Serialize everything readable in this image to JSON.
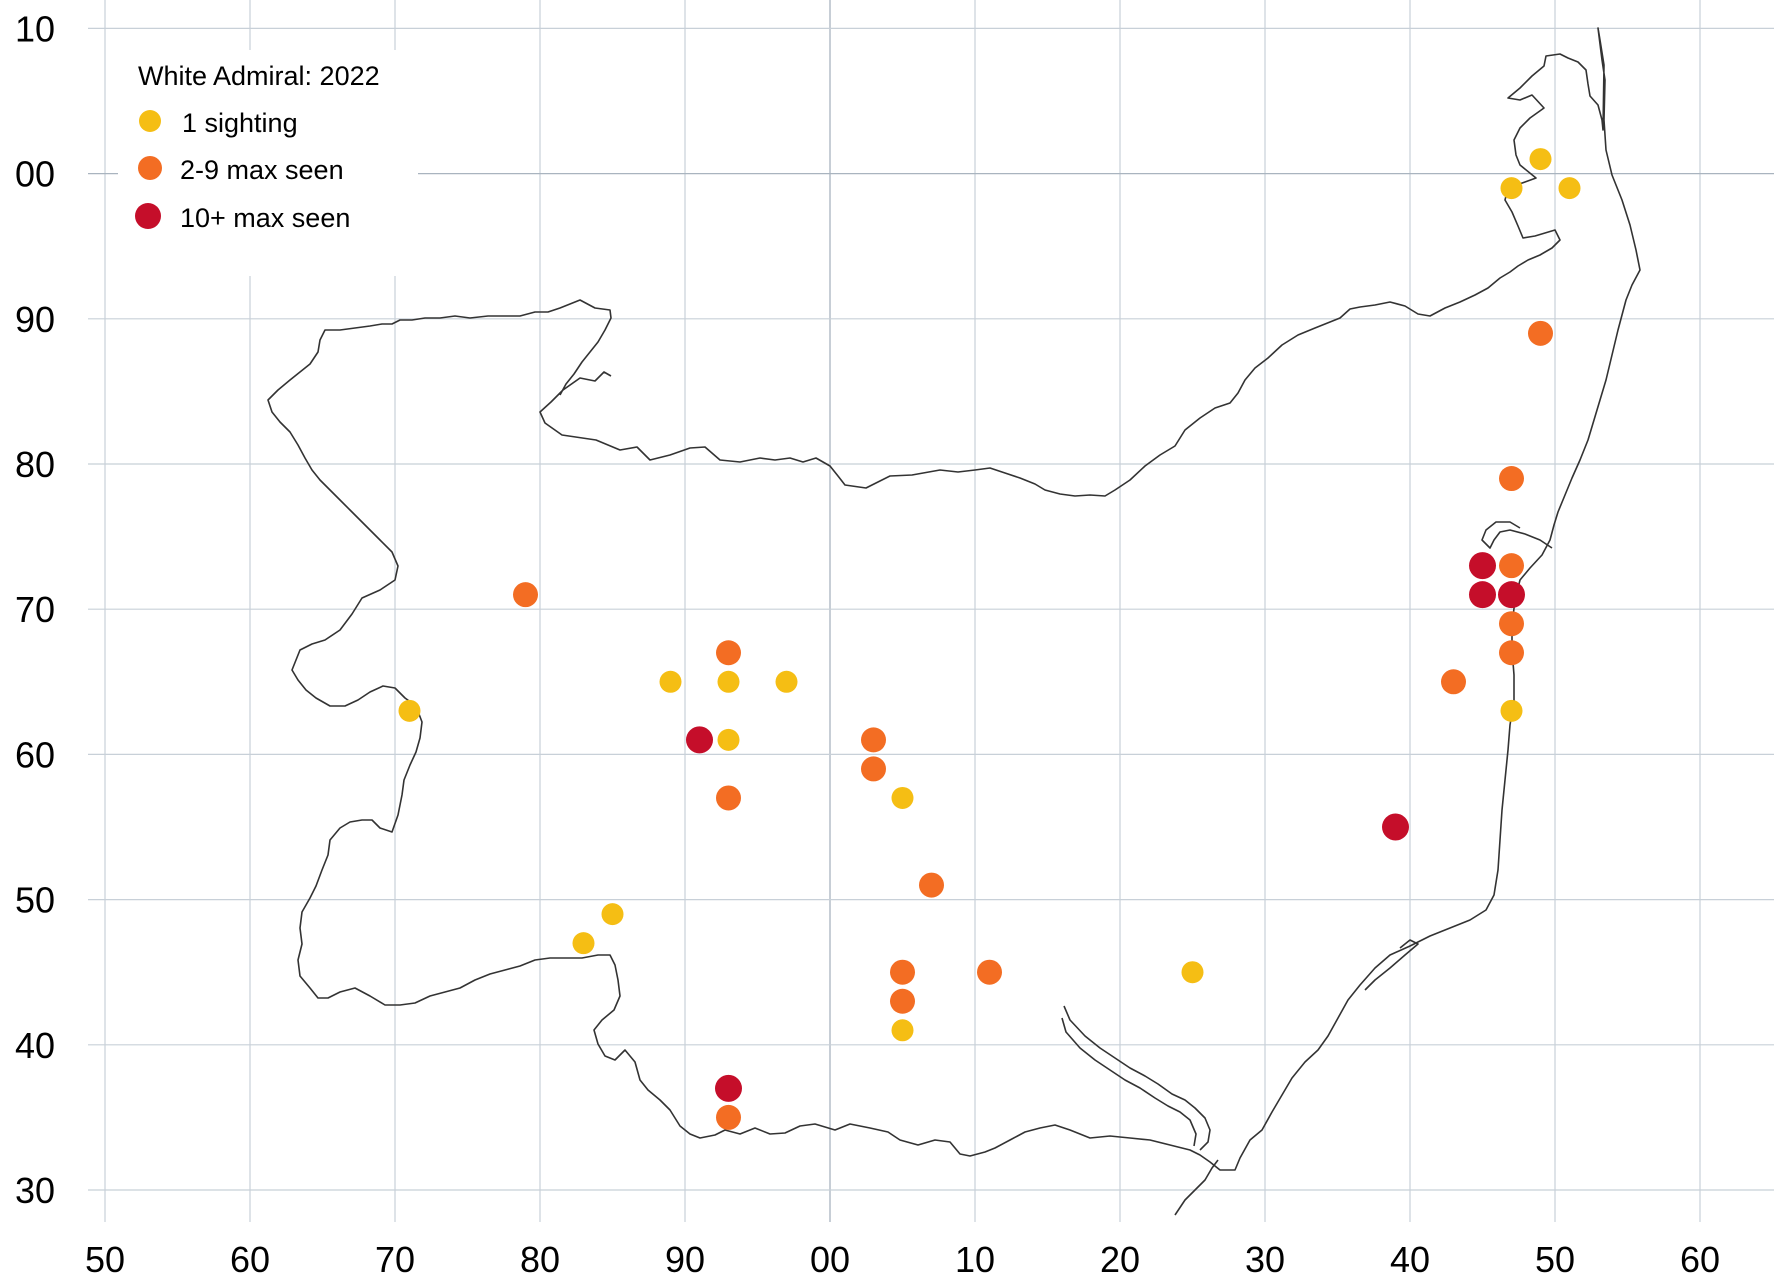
{
  "chart_data": {
    "type": "scatter",
    "title": "White Admiral:  2022",
    "x_tick_labels": [
      "50",
      "60",
      "70",
      "80",
      "90",
      "00",
      "10",
      "20",
      "30",
      "40",
      "50",
      "60"
    ],
    "y_tick_labels": [
      "30",
      "40",
      "50",
      "60",
      "70",
      "80",
      "90",
      "00",
      "10"
    ],
    "x_grid_values": [
      50,
      60,
      70,
      80,
      90,
      100,
      110,
      120,
      130,
      140,
      150,
      160
    ],
    "y_grid_values": [
      30,
      40,
      50,
      60,
      70,
      80,
      90,
      100,
      110
    ],
    "xlim": [
      49,
      164
    ],
    "ylim": [
      28,
      110
    ],
    "grid": true,
    "legend_position": "top-left",
    "categories": [
      {
        "key": "one",
        "label": "1 sighting",
        "color": "#f5be14"
      },
      {
        "key": "few",
        "label": "2-9 max seen",
        "color": "#f36d23"
      },
      {
        "key": "many",
        "label": "10+ max seen",
        "color": "#c50e2a"
      }
    ],
    "points": [
      {
        "x": 71,
        "y": 63,
        "cat": "one"
      },
      {
        "x": 79,
        "y": 71,
        "cat": "few"
      },
      {
        "x": 83,
        "y": 47,
        "cat": "one"
      },
      {
        "x": 85,
        "y": 49,
        "cat": "one"
      },
      {
        "x": 89,
        "y": 65,
        "cat": "one"
      },
      {
        "x": 91,
        "y": 61,
        "cat": "many"
      },
      {
        "x": 93,
        "y": 67,
        "cat": "few"
      },
      {
        "x": 93,
        "y": 65,
        "cat": "one"
      },
      {
        "x": 93,
        "y": 61,
        "cat": "one"
      },
      {
        "x": 93,
        "y": 57,
        "cat": "few"
      },
      {
        "x": 93,
        "y": 37,
        "cat": "many"
      },
      {
        "x": 93,
        "y": 35,
        "cat": "few"
      },
      {
        "x": 97,
        "y": 65,
        "cat": "one"
      },
      {
        "x": 103,
        "y": 61,
        "cat": "few"
      },
      {
        "x": 103,
        "y": 59,
        "cat": "few"
      },
      {
        "x": 105,
        "y": 57,
        "cat": "one"
      },
      {
        "x": 107,
        "y": 51,
        "cat": "few"
      },
      {
        "x": 105,
        "y": 45,
        "cat": "few"
      },
      {
        "x": 105,
        "y": 43,
        "cat": "few"
      },
      {
        "x": 105,
        "y": 41,
        "cat": "one"
      },
      {
        "x": 111,
        "y": 45,
        "cat": "few"
      },
      {
        "x": 125,
        "y": 45,
        "cat": "one"
      },
      {
        "x": 139,
        "y": 55,
        "cat": "many"
      },
      {
        "x": 143,
        "y": 65,
        "cat": "few"
      },
      {
        "x": 145,
        "y": 73,
        "cat": "many"
      },
      {
        "x": 145,
        "y": 71,
        "cat": "many"
      },
      {
        "x": 147,
        "y": 73,
        "cat": "few"
      },
      {
        "x": 147,
        "y": 71,
        "cat": "many"
      },
      {
        "x": 147,
        "y": 69,
        "cat": "few"
      },
      {
        "x": 147,
        "y": 67,
        "cat": "few"
      },
      {
        "x": 147,
        "y": 63,
        "cat": "one"
      },
      {
        "x": 147,
        "y": 79,
        "cat": "few"
      },
      {
        "x": 149,
        "y": 89,
        "cat": "few"
      },
      {
        "x": 147,
        "y": 99,
        "cat": "one"
      },
      {
        "x": 149,
        "y": 101,
        "cat": "one"
      },
      {
        "x": 151,
        "y": 99,
        "cat": "one"
      }
    ]
  }
}
